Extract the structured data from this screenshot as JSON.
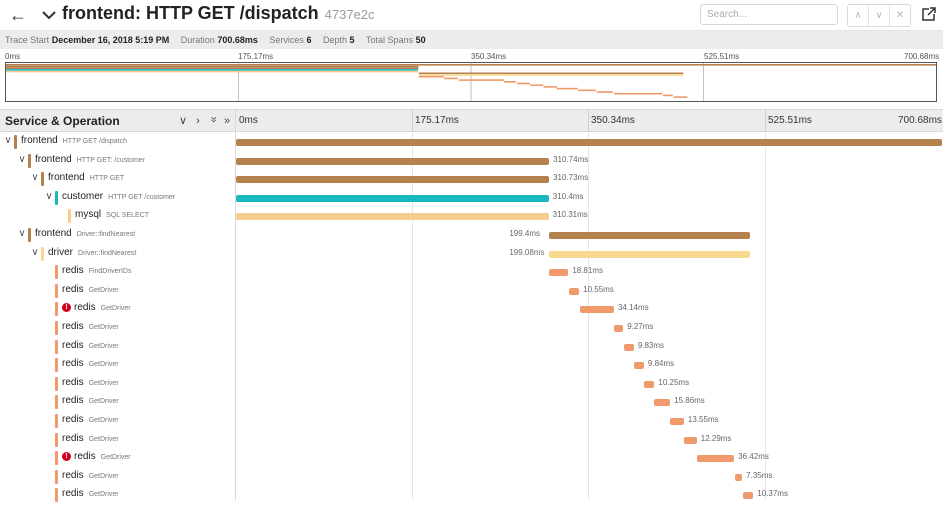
{
  "header": {
    "title": "frontend: HTTP GET /dispatch",
    "trace_id": "4737e2c",
    "search_placeholder": "Search..."
  },
  "summary": {
    "trace_start_label": "Trace Start",
    "trace_start_value": "December 16, 2018 5:19 PM",
    "duration_label": "Duration",
    "duration_value": "700.68ms",
    "services_label": "Services",
    "services_value": "6",
    "depth_label": "Depth",
    "depth_value": "5",
    "total_spans_label": "Total Spans",
    "total_spans_value": "50"
  },
  "timeline": {
    "ticks": [
      "0ms",
      "175.17ms",
      "350.34ms",
      "525.51ms",
      "700.68ms"
    ],
    "total_ms": 700.68
  },
  "table_header": {
    "label": "Service & Operation",
    "controls": [
      "∨",
      "›",
      "»",
      "»"
    ]
  },
  "colors": {
    "frontend": "#b5814e",
    "customer": "#17b8be",
    "mysql": "#f7cd8f",
    "driver": "#f7d98f",
    "redis": "#f09a6c",
    "error": "#d0021b"
  },
  "spans": [
    {
      "service": "frontend",
      "operation": "HTTP GET /dispatch",
      "depth": 0,
      "toggle": "∨",
      "start": 0,
      "dur": 700.68,
      "label": "",
      "error": false
    },
    {
      "service": "frontend",
      "operation": "HTTP GET: /customer",
      "depth": 1,
      "toggle": "∨",
      "start": 0,
      "dur": 310.74,
      "label": "310.74ms",
      "error": false
    },
    {
      "service": "frontend",
      "operation": "HTTP GET",
      "depth": 2,
      "toggle": "∨",
      "start": 0,
      "dur": 310.73,
      "label": "310.73ms",
      "error": false
    },
    {
      "service": "customer",
      "operation": "HTTP GET /customer",
      "depth": 3,
      "toggle": "∨",
      "start": 0,
      "dur": 310.4,
      "label": "310.4ms",
      "error": false
    },
    {
      "service": "mysql",
      "operation": "SQL SELECT",
      "depth": 4,
      "toggle": "",
      "start": 0,
      "dur": 310.31,
      "label": "310.31ms",
      "error": false
    },
    {
      "service": "frontend",
      "operation": "Driver::findNearest",
      "depth": 1,
      "toggle": "∨",
      "start": 311,
      "dur": 199.4,
      "label": "199.4ms",
      "error": false
    },
    {
      "service": "driver",
      "operation": "Driver::findNearest",
      "depth": 2,
      "toggle": "∨",
      "start": 311,
      "dur": 199.08,
      "label": "199.08ms",
      "error": false
    },
    {
      "service": "redis",
      "operation": "FindDriverIDs",
      "depth": 3,
      "toggle": "",
      "start": 311,
      "dur": 18.81,
      "label": "18.81ms",
      "error": false
    },
    {
      "service": "redis",
      "operation": "GetDriver",
      "depth": 3,
      "toggle": "",
      "start": 330,
      "dur": 10.55,
      "label": "10.55ms",
      "error": false
    },
    {
      "service": "redis",
      "operation": "GetDriver",
      "depth": 3,
      "toggle": "",
      "start": 341,
      "dur": 34.14,
      "label": "34.14ms",
      "error": true
    },
    {
      "service": "redis",
      "operation": "GetDriver",
      "depth": 3,
      "toggle": "",
      "start": 375,
      "dur": 9.27,
      "label": "9.27ms",
      "error": false
    },
    {
      "service": "redis",
      "operation": "GetDriver",
      "depth": 3,
      "toggle": "",
      "start": 385,
      "dur": 9.83,
      "label": "9.83ms",
      "error": false
    },
    {
      "service": "redis",
      "operation": "GetDriver",
      "depth": 3,
      "toggle": "",
      "start": 395,
      "dur": 9.84,
      "label": "9.84ms",
      "error": false
    },
    {
      "service": "redis",
      "operation": "GetDriver",
      "depth": 3,
      "toggle": "",
      "start": 405,
      "dur": 10.25,
      "label": "10.25ms",
      "error": false
    },
    {
      "service": "redis",
      "operation": "GetDriver",
      "depth": 3,
      "toggle": "",
      "start": 415,
      "dur": 15.86,
      "label": "15.86ms",
      "error": false
    },
    {
      "service": "redis",
      "operation": "GetDriver",
      "depth": 3,
      "toggle": "",
      "start": 431,
      "dur": 13.55,
      "label": "13.55ms",
      "error": false
    },
    {
      "service": "redis",
      "operation": "GetDriver",
      "depth": 3,
      "toggle": "",
      "start": 445,
      "dur": 12.29,
      "label": "12.29ms",
      "error": false
    },
    {
      "service": "redis",
      "operation": "GetDriver",
      "depth": 3,
      "toggle": "",
      "start": 458,
      "dur": 36.42,
      "label": "36.42ms",
      "error": true
    },
    {
      "service": "redis",
      "operation": "GetDriver",
      "depth": 3,
      "toggle": "",
      "start": 495,
      "dur": 7.35,
      "label": "7.35ms",
      "error": false
    },
    {
      "service": "redis",
      "operation": "GetDriver",
      "depth": 3,
      "toggle": "",
      "start": 503,
      "dur": 10.37,
      "label": "10.37ms",
      "error": false
    }
  ]
}
